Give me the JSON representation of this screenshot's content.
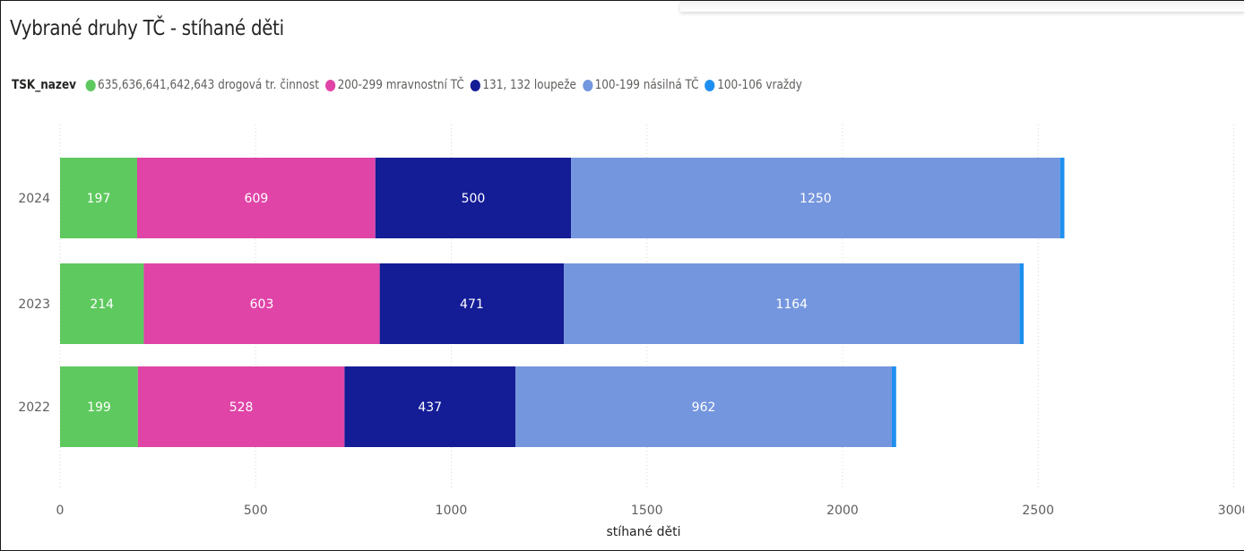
{
  "chart_data": {
    "type": "bar",
    "orientation": "horizontal",
    "stacked": true,
    "title": "Vybrané druhy TČ - stíhané děti",
    "legend_title": "TSK_nazev",
    "legend_position": "top-left",
    "categories": [
      "2024",
      "2023",
      "2022"
    ],
    "series": [
      {
        "name": "635,636,641,642,643 drogová tr. činnost",
        "color": "#5ec95e",
        "label_color": "#ffffff",
        "values": [
          197,
          214,
          199
        ]
      },
      {
        "name": "200-299 mravnostní TČ",
        "color": "#e044a7",
        "label_color": "#ffffff",
        "values": [
          609,
          603,
          528
        ]
      },
      {
        "name": "131, 132 loupeže",
        "color": "#141c96",
        "label_color": "#ffffff",
        "values": [
          500,
          471,
          437
        ]
      },
      {
        "name": "100-199 násilná TČ",
        "color": "#7496de",
        "label_color": "#ffffff",
        "values": [
          1250,
          1164,
          962
        ]
      },
      {
        "name": "100-106 vraždy",
        "color": "#1f8fef",
        "label_color": "#ffffff",
        "values": [
          11,
          11,
          11
        ]
      }
    ],
    "xlabel": "stíhané děti",
    "ylabel": "",
    "xlim": [
      0,
      3000
    ],
    "xticks": [
      0,
      500,
      1000,
      1500,
      2000,
      2500,
      3000
    ],
    "xtick_labels": [
      "0",
      "500",
      "1000",
      "1500",
      "2000",
      "2500",
      "3000"
    ],
    "grid": "vertical dotted"
  }
}
